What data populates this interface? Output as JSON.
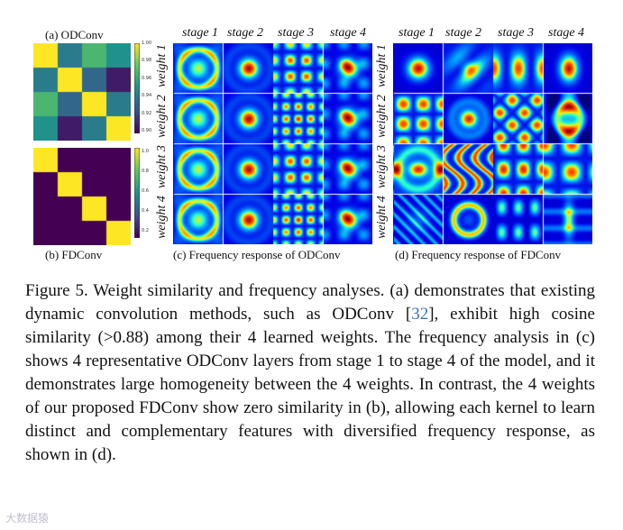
{
  "panel_a": {
    "title": "(a) ODConv",
    "colorbar_ticks": [
      "1.00",
      "0.98",
      "0.96",
      "0.94",
      "0.92",
      "0.90"
    ],
    "matrix": [
      [
        1.0,
        0.93,
        0.96,
        0.94
      ],
      [
        0.93,
        1.0,
        0.92,
        0.89
      ],
      [
        0.96,
        0.92,
        1.0,
        0.93
      ],
      [
        0.94,
        0.89,
        0.93,
        1.0
      ]
    ],
    "vmin": 0.88,
    "vmax": 1.0
  },
  "panel_b": {
    "title": "(b) FDConv",
    "colorbar_ticks": [
      "1.0",
      "0.8",
      "0.6",
      "0.4",
      "0.2"
    ],
    "matrix": [
      [
        1,
        0,
        0,
        0
      ],
      [
        0,
        1,
        0,
        0
      ],
      [
        0,
        0,
        1,
        0
      ],
      [
        0,
        0,
        0,
        1
      ]
    ],
    "vmin": 0.0,
    "vmax": 1.0
  },
  "stages": [
    "stage 1",
    "stage 2",
    "stage 3",
    "stage 4"
  ],
  "weights": [
    "weight 1",
    "weight 2",
    "weight 3",
    "weight 4"
  ],
  "panel_c": {
    "title": "(c) Frequency response of ODConv"
  },
  "panel_d": {
    "title": "(d) Frequency response of FDConv"
  },
  "caption": {
    "part1": "Figure 5. Weight similarity and frequency analyses. (a) demonstrates that existing dynamic convolution methods, such as ODConv [",
    "ref": "32",
    "part2": "], exhibit high cosine similarity (>0.88) among their 4 learned weights. The frequency analysis in (c) shows 4 representative ODConv layers from stage 1 to stage 4 of the model, and it demonstrates large homogeneity between the 4 weights. In contrast, the 4 weights of our proposed FDConv show zero similarity in (b), allowing each kernel to learn distinct and complementary features with diversified frequency response, as shown in (d)."
  },
  "watermark": "大数据猿"
}
